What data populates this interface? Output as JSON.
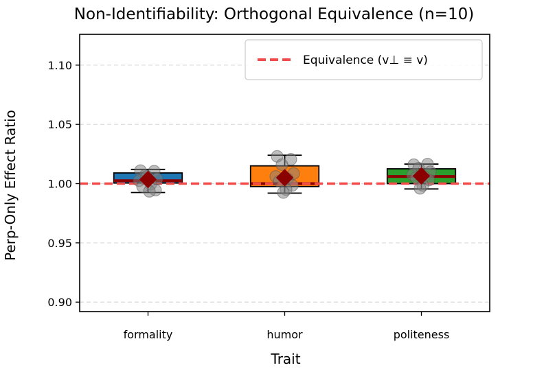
{
  "chart_data": {
    "type": "box",
    "title": "Non-Identifiability: Orthogonal Equivalence (n=10)",
    "xlabel": "Trait",
    "ylabel": "Perp-Only Effect Ratio",
    "ylim": [
      0.892,
      1.126
    ],
    "yticks": [
      0.9,
      0.95,
      1.0,
      1.05,
      1.1
    ],
    "ytick_labels": [
      "0.90",
      "0.95",
      "1.00",
      "1.05",
      "1.10"
    ],
    "grid": "horizontal-dashed",
    "reference_line": {
      "value": 1.0,
      "label": "Equivalence (v⊥ ≡ v)",
      "color": "#f24b4b"
    },
    "legend": {
      "placement": "top-right"
    },
    "mean_marker_color": "#8b0000",
    "point_color": "#808080",
    "categories": [
      "formality",
      "humor",
      "politeness"
    ],
    "boxes": [
      {
        "name": "formality",
        "color": "#1f77b4",
        "median_color": "#8b0000",
        "whisker_low": 0.9925,
        "q1": 1.0005,
        "median": 1.0025,
        "q3": 1.009,
        "whisker_high": 1.012,
        "mean": 1.0035,
        "points": [
          1.011,
          1.0105,
          1.007,
          1.004,
          1.0025,
          0.9995,
          0.9975,
          0.9945,
          0.9935,
          1.006
        ]
      },
      {
        "name": "humor",
        "color": "#ff7f0e",
        "median_color": "#8b0000",
        "whisker_low": 0.992,
        "q1": 0.9975,
        "median": 1.0,
        "q3": 1.015,
        "whisker_high": 1.024,
        "mean": 1.005,
        "points": [
          1.023,
          1.0205,
          1.016,
          1.0085,
          1.006,
          1.004,
          1.002,
          0.9985,
          0.995,
          0.9925
        ]
      },
      {
        "name": "politeness",
        "color": "#2ca02c",
        "median_color": "#8b0000",
        "whisker_low": 0.9955,
        "q1": 1.0,
        "median": 1.006,
        "q3": 1.0125,
        "whisker_high": 1.0165,
        "mean": 1.0065,
        "points": [
          1.016,
          1.0165,
          1.013,
          1.01,
          1.0075,
          1.006,
          1.005,
          1.003,
          0.9985,
          0.996
        ]
      }
    ]
  }
}
